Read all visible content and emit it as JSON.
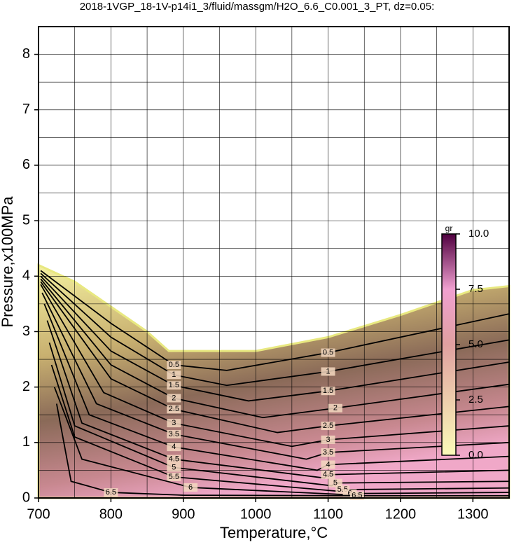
{
  "chart_data": {
    "type": "contour",
    "title": "2018-1VGP_18-1V-p14i1_3/fluid/massgm/H2O_6.6_C0.001_3_PT, dz=0.05:",
    "x_label": "Temperature,°C",
    "y_label": "Pressure,x100MPa",
    "xlim": [
      700,
      1350
    ],
    "ylim": [
      0,
      8.5
    ],
    "xticks": [
      700,
      800,
      900,
      1000,
      1100,
      1200,
      1300
    ],
    "yticks": [
      0,
      1,
      2,
      3,
      4,
      5,
      6,
      7,
      8
    ],
    "grid": true,
    "xgrid_step": 50,
    "ygrid_step": 0.5,
    "domain_boundary": {
      "x": [
        700,
        750,
        800,
        850,
        880,
        1000,
        1100,
        1200,
        1300,
        1350
      ],
      "y": [
        4.2,
        3.9,
        3.45,
        3.0,
        2.65,
        2.65,
        2.9,
        3.3,
        3.75,
        3.82
      ]
    },
    "series": [
      {
        "name": "0.5",
        "x": [
          703,
          800,
          887,
          960,
          1100,
          1350
        ],
        "y": [
          4.1,
          3.15,
          2.4,
          2.3,
          2.62,
          3.32
        ]
      },
      {
        "name": "1",
        "x": [
          703,
          800,
          887,
          960,
          1100,
          1350
        ],
        "y": [
          4.05,
          2.9,
          2.22,
          2.03,
          2.28,
          2.85
        ]
      },
      {
        "name": "1.5",
        "x": [
          703,
          800,
          887,
          990,
          1100,
          1350
        ],
        "y": [
          4.0,
          2.65,
          2.03,
          1.75,
          1.93,
          2.45
        ]
      },
      {
        "name": "2",
        "x": [
          703,
          800,
          887,
          1010,
          1110,
          1350
        ],
        "y": [
          3.95,
          2.4,
          1.8,
          1.45,
          1.62,
          2.05
        ]
      },
      {
        "name": "2.5",
        "x": [
          703,
          800,
          887,
          1030,
          1100,
          1350
        ],
        "y": [
          3.9,
          2.15,
          1.6,
          1.18,
          1.3,
          1.65
        ]
      },
      {
        "name": "3",
        "x": [
          703,
          790,
          887,
          1050,
          1100,
          1350
        ],
        "y": [
          3.85,
          1.9,
          1.35,
          0.93,
          1.05,
          1.3
        ]
      },
      {
        "name": "3.5",
        "x": [
          705,
          780,
          887,
          1070,
          1100,
          1350
        ],
        "y": [
          3.7,
          1.7,
          1.15,
          0.7,
          0.82,
          1.0
        ]
      },
      {
        "name": "4",
        "x": [
          708,
          770,
          887,
          1085,
          1100,
          1350
        ],
        "y": [
          3.5,
          1.5,
          0.92,
          0.5,
          0.6,
          0.75
        ]
      },
      {
        "name": "4.5",
        "x": [
          712,
          760,
          887,
          1095,
          1100,
          1350
        ],
        "y": [
          3.2,
          1.35,
          0.7,
          0.36,
          0.42,
          0.5
        ]
      },
      {
        "name": "5",
        "x": [
          715,
          750,
          887,
          1105,
          1110,
          1350
        ],
        "y": [
          2.8,
          1.3,
          0.55,
          0.22,
          0.27,
          0.3
        ]
      },
      {
        "name": "5.5",
        "x": [
          718,
          750,
          887,
          1115,
          1120,
          1350
        ],
        "y": [
          2.4,
          1.1,
          0.38,
          0.12,
          0.15,
          0.18
        ]
      },
      {
        "name": "6",
        "x": [
          722,
          760,
          910,
          1125,
          1130,
          1350
        ],
        "y": [
          2.0,
          0.7,
          0.19,
          0.06,
          0.08,
          0.1
        ]
      },
      {
        "name": "6.5",
        "x": [
          725,
          745,
          800,
          900,
          1140,
          1350
        ],
        "y": [
          1.7,
          0.3,
          0.1,
          0.05,
          0.04,
          0.04
        ]
      }
    ],
    "colorbar": {
      "label": "gr",
      "lim": [
        0,
        10
      ],
      "ticks": [
        {
          "value": 0,
          "label": "0.0"
        },
        2.5,
        {
          "value": 5,
          "label": "5.0"
        },
        7.5,
        {
          "value": 10,
          "label": "10.0"
        }
      ]
    }
  }
}
